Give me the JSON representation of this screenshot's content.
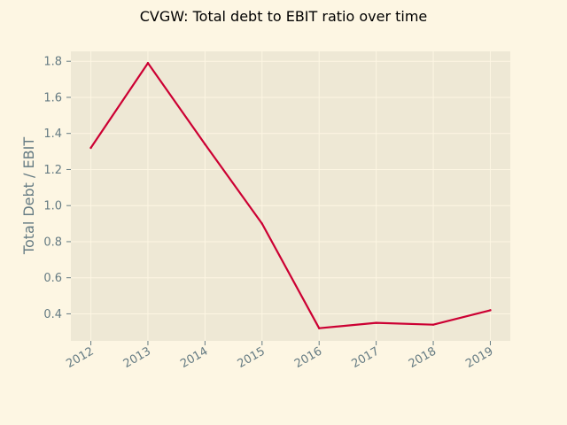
{
  "chart_data": {
    "type": "line",
    "title": "CVGW: Total debt to EBIT ratio over time",
    "xlabel": "",
    "ylabel": "Total Debt / EBIT",
    "x": [
      "2012",
      "2013",
      "2014",
      "2015",
      "2016",
      "2017",
      "2018",
      "2019"
    ],
    "series": [
      {
        "values": [
          1.32,
          1.79,
          1.34,
          0.9,
          0.32,
          0.35,
          0.34,
          0.42
        ]
      }
    ],
    "y_ticks": [
      "0.4",
      "0.6",
      "0.8",
      "1.0",
      "1.2",
      "1.4",
      "1.6",
      "1.8"
    ],
    "ylim": [
      0.25,
      1.855
    ],
    "grid": true,
    "colors": {
      "figure_background": "#fdf6e3",
      "plot_background": "#eee8d5",
      "line": "#cc0033",
      "grid": "#fdf6e3",
      "tick_text": "#657b83"
    }
  }
}
